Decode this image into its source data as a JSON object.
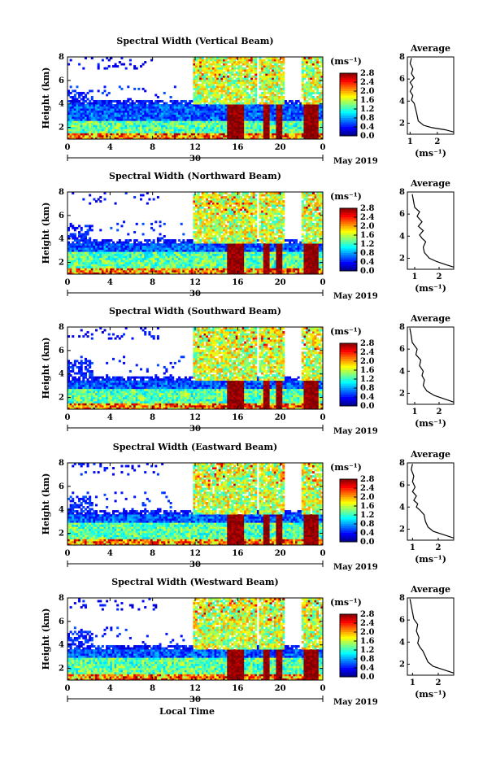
{
  "chart_data": [
    {
      "type": "heatmap",
      "title": "Spectral Width (Vertical Beam)",
      "ylabel": "Height (km)",
      "x_ticks": [
        "0",
        "4",
        "8",
        "12",
        "16",
        "20",
        "0"
      ],
      "xlim": [
        0,
        24
      ],
      "ylim": [
        1,
        8
      ],
      "y_ticks": [
        "2",
        "4",
        "6",
        "8"
      ],
      "day_label": "30",
      "month_label": "May 2019",
      "colorbar": {
        "unit": "(ms⁻¹)",
        "ticks": [
          "2.8",
          "2.4",
          "2.0",
          "1.6",
          "1.2",
          "0.8",
          "0.4",
          "0.0"
        ],
        "range": [
          0,
          2.8
        ]
      },
      "average": {
        "title": "Average",
        "xlabel": "(ms⁻¹)",
        "x_ticks": [
          "1",
          "2"
        ],
        "xlim": [
          0.9,
          2.6
        ],
        "points": [
          [
            2.6,
            1.2
          ],
          [
            2.3,
            1.4
          ],
          [
            1.8,
            1.6
          ],
          [
            1.5,
            1.8
          ],
          [
            1.3,
            2.2
          ],
          [
            1.25,
            2.8
          ],
          [
            1.2,
            3.3
          ],
          [
            1.15,
            3.8
          ],
          [
            1.05,
            4.1
          ],
          [
            1.1,
            4.5
          ],
          [
            1.0,
            4.9
          ],
          [
            1.1,
            5.3
          ],
          [
            1.0,
            5.7
          ],
          [
            1.15,
            6.1
          ],
          [
            1.05,
            6.5
          ],
          [
            1.1,
            6.9
          ],
          [
            1.0,
            7.4
          ],
          [
            1.05,
            7.9
          ]
        ]
      }
    },
    {
      "type": "heatmap",
      "title": "Spectral Width (Northward Beam)",
      "ylabel": "Height (km)",
      "x_ticks": [
        "0",
        "4",
        "8",
        "12",
        "16",
        "20",
        "0"
      ],
      "xlim": [
        0,
        24
      ],
      "ylim": [
        1,
        8
      ],
      "y_ticks": [
        "2",
        "4",
        "6",
        "8"
      ],
      "day_label": "30",
      "month_label": "May 2019",
      "colorbar": {
        "unit": "(ms⁻¹)",
        "ticks": [
          "2.8",
          "2.4",
          "2.0",
          "1.6",
          "1.2",
          "0.8",
          "0.4",
          "0.0"
        ],
        "range": [
          0,
          2.8
        ]
      },
      "average": {
        "title": "Average",
        "xlabel": "(ms⁻¹)",
        "x_ticks": [
          "1",
          "2"
        ],
        "xlim": [
          0.7,
          2.6
        ],
        "points": [
          [
            2.6,
            1.2
          ],
          [
            2.3,
            1.4
          ],
          [
            1.9,
            1.7
          ],
          [
            1.6,
            2.0
          ],
          [
            1.4,
            2.5
          ],
          [
            1.35,
            3.0
          ],
          [
            1.45,
            3.5
          ],
          [
            1.3,
            3.8
          ],
          [
            1.2,
            4.1
          ],
          [
            1.35,
            4.5
          ],
          [
            1.15,
            4.9
          ],
          [
            1.3,
            5.3
          ],
          [
            1.1,
            5.8
          ],
          [
            1.2,
            6.2
          ],
          [
            1.0,
            6.6
          ],
          [
            0.95,
            7.2
          ],
          [
            0.9,
            7.8
          ]
        ]
      }
    },
    {
      "type": "heatmap",
      "title": "Spectral Width (Southward Beam)",
      "ylabel": "Height (km)",
      "x_ticks": [
        "0",
        "4",
        "8",
        "12",
        "16",
        "20",
        "0"
      ],
      "xlim": [
        0,
        24
      ],
      "ylim": [
        1,
        8
      ],
      "y_ticks": [
        "2",
        "4",
        "6",
        "8"
      ],
      "day_label": "30",
      "month_label": "May 2019",
      "colorbar": {
        "unit": "(ms⁻¹)",
        "ticks": [
          "2.8",
          "2.4",
          "2.0",
          "1.6",
          "1.2",
          "0.8",
          "0.4",
          "0.0"
        ],
        "range": [
          0,
          2.8
        ]
      },
      "average": {
        "title": "Average",
        "xlabel": "(ms⁻¹)",
        "x_ticks": [
          "1",
          "2"
        ],
        "xlim": [
          0.7,
          2.6
        ],
        "points": [
          [
            2.6,
            1.2
          ],
          [
            2.2,
            1.5
          ],
          [
            1.8,
            1.8
          ],
          [
            1.5,
            2.2
          ],
          [
            1.35,
            2.7
          ],
          [
            1.4,
            3.2
          ],
          [
            1.3,
            3.6
          ],
          [
            1.35,
            4.0
          ],
          [
            1.2,
            4.5
          ],
          [
            1.25,
            5.0
          ],
          [
            1.05,
            5.5
          ],
          [
            1.1,
            6.0
          ],
          [
            0.9,
            6.6
          ],
          [
            0.85,
            7.3
          ],
          [
            0.8,
            7.9
          ]
        ]
      }
    },
    {
      "type": "heatmap",
      "title": "Spectral Width (Eastward Beam)",
      "ylabel": "Height (km)",
      "x_ticks": [
        "0",
        "4",
        "8",
        "12",
        "16",
        "20",
        "0"
      ],
      "xlim": [
        0,
        24
      ],
      "ylim": [
        1,
        8
      ],
      "y_ticks": [
        "2",
        "4",
        "6",
        "8"
      ],
      "day_label": "30",
      "month_label": "May 2019",
      "colorbar": {
        "unit": "(ms⁻¹)",
        "ticks": [
          "2.8",
          "2.4",
          "2.0",
          "1.6",
          "1.2",
          "0.8",
          "0.4",
          "0.0"
        ],
        "range": [
          0,
          2.8
        ]
      },
      "average": {
        "title": "Average",
        "xlabel": "(ms⁻¹)",
        "x_ticks": [
          "1",
          "2"
        ],
        "xlim": [
          0.8,
          2.6
        ],
        "points": [
          [
            2.6,
            1.2
          ],
          [
            2.2,
            1.5
          ],
          [
            1.8,
            1.8
          ],
          [
            1.6,
            2.2
          ],
          [
            1.5,
            2.7
          ],
          [
            1.45,
            3.3
          ],
          [
            1.3,
            3.7
          ],
          [
            1.15,
            4.0
          ],
          [
            1.2,
            4.3
          ],
          [
            1.05,
            4.6
          ],
          [
            1.15,
            5.0
          ],
          [
            1.0,
            5.4
          ],
          [
            1.1,
            5.8
          ],
          [
            1.0,
            6.3
          ],
          [
            1.05,
            6.8
          ],
          [
            0.95,
            7.4
          ],
          [
            1.0,
            7.9
          ]
        ]
      }
    },
    {
      "type": "heatmap",
      "title": "Spectral Width (Westward Beam)",
      "ylabel": "Height (km)",
      "x_ticks": [
        "0",
        "4",
        "8",
        "12",
        "16",
        "20",
        "0"
      ],
      "xlim": [
        0,
        24
      ],
      "ylim": [
        1,
        8
      ],
      "y_ticks": [
        "2",
        "4",
        "6",
        "8"
      ],
      "day_label": "30",
      "month_label": "May 2019",
      "xlabel": "Local Time",
      "colorbar": {
        "unit": "(ms⁻¹)",
        "ticks": [
          "2.8",
          "2.4",
          "2.0",
          "1.6",
          "1.2",
          "0.8",
          "0.4",
          "0.0"
        ],
        "range": [
          0,
          2.8
        ]
      },
      "average": {
        "title": "Average",
        "xlabel": "(ms⁻¹)",
        "x_ticks": [
          "1",
          "2"
        ],
        "xlim": [
          0.8,
          2.6
        ],
        "points": [
          [
            2.6,
            1.2
          ],
          [
            2.2,
            1.5
          ],
          [
            1.8,
            1.8
          ],
          [
            1.6,
            2.2
          ],
          [
            1.5,
            2.7
          ],
          [
            1.4,
            3.2
          ],
          [
            1.3,
            3.5
          ],
          [
            1.2,
            3.9
          ],
          [
            1.25,
            4.4
          ],
          [
            1.15,
            5.0
          ],
          [
            1.2,
            5.6
          ],
          [
            1.05,
            6.1
          ],
          [
            1.0,
            6.7
          ],
          [
            0.95,
            7.3
          ],
          [
            0.9,
            7.9
          ]
        ]
      }
    }
  ]
}
